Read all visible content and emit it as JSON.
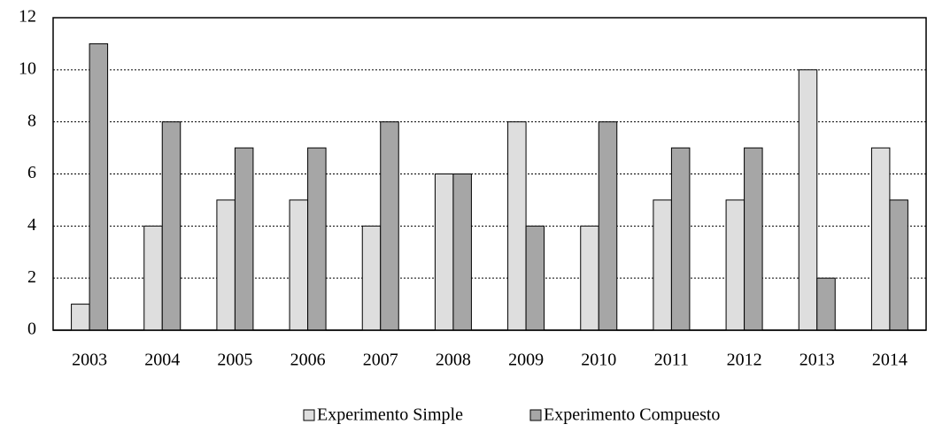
{
  "chart_data": {
    "type": "bar",
    "categories": [
      "2003",
      "2004",
      "2005",
      "2006",
      "2007",
      "2008",
      "2009",
      "2010",
      "2011",
      "2012",
      "2013",
      "2014"
    ],
    "series": [
      {
        "name": "Experimento Simple",
        "color": "#dedede",
        "values": [
          1,
          4,
          5,
          5,
          4,
          6,
          8,
          4,
          5,
          5,
          10,
          7
        ]
      },
      {
        "name": "Experimento Compuesto",
        "color": "#a6a6a6",
        "values": [
          11,
          8,
          7,
          7,
          8,
          6,
          4,
          8,
          7,
          7,
          2,
          5
        ]
      }
    ],
    "ylim": [
      0,
      12
    ],
    "yticks": [
      0,
      2,
      4,
      6,
      8,
      10,
      12
    ],
    "grid": true,
    "legend": "bottom"
  }
}
